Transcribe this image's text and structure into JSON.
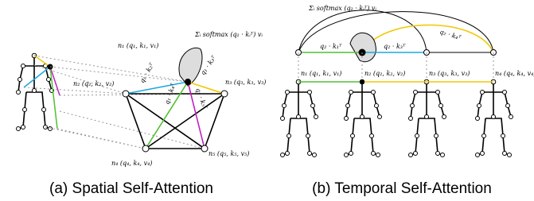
{
  "spatial": {
    "caption": "(a) Spatial Self-Attention",
    "formula": "Σᵢ softmax (q₁ · kᵢᵀ) vᵢ",
    "nodes": [
      "n₁ (q₁, k₁, v₁)",
      "n₂ (q₂, k₂, v₂)",
      "n₃ (q₃, k₃, v₃)",
      "n₄ (q₄, k₄, v₄)",
      "n₅ (q₅, k₅, v₅)"
    ],
    "edges": [
      "q₁ · k₂ᵀ",
      "q₁ · k₄ᵀ",
      "q₁ · k₅ᵀ",
      "q₁ · k₃ᵀ"
    ]
  },
  "temporal": {
    "caption": "(b) Temporal Self-Attention",
    "formula": "Σᵢ softmax (q₂ · kᵢᵀ) vᵢ",
    "nodes": [
      "n₁ (q₁, k₁, v₁)",
      "n₂ (q₂, k₂, v₂)",
      "n₃ (q₃, k₃, v₃)",
      "n₄ (q₄, k₄, v₄)"
    ],
    "edges": [
      "q₂ · k₁ᵀ",
      "q₂ · k₃ᵀ",
      "q₂ · k₄ᵀ"
    ]
  }
}
